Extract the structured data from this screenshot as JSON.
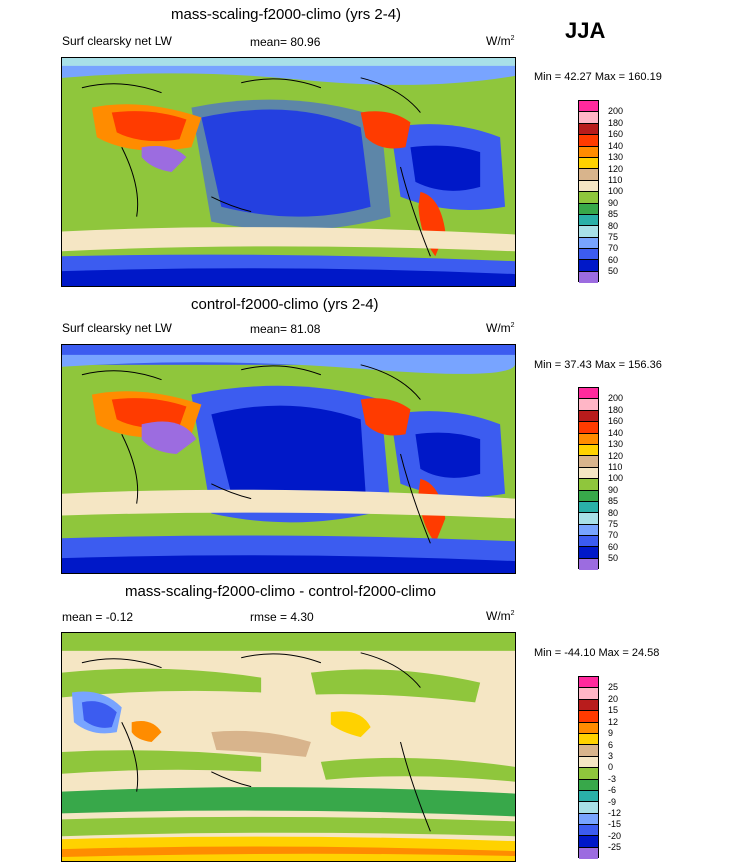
{
  "season": "JJA",
  "panels": [
    {
      "title": "mass-scaling-f2000-climo (yrs 2-4)",
      "left_label": "Surf clearsky net LW",
      "center_label": "mean=  80.96",
      "units": "W/m",
      "units_sup": "2",
      "minmax": "Min =  42.27 Max = 160.19",
      "colorbar_labels": [
        "200",
        "180",
        "160",
        "140",
        "130",
        "120",
        "110",
        "100",
        "90",
        "85",
        "80",
        "75",
        "70",
        "60",
        "50"
      ],
      "colorbar_colors": [
        "#ff2a9d",
        "#ffb6c6",
        "#b81c1c",
        "#ff3b00",
        "#ff8c00",
        "#ffd200",
        "#d8b48c",
        "#f5e6c4",
        "#8fc63c",
        "#38a84a",
        "#2ab0a8",
        "#a8e0e8",
        "#78a4ff",
        "#3c5cf0",
        "#0018c8",
        "#9c6ce0"
      ]
    },
    {
      "title": "control-f2000-climo (yrs 2-4)",
      "left_label": "Surf clearsky net LW",
      "center_label": "mean=  81.08",
      "units": "W/m",
      "units_sup": "2",
      "minmax": "Min =  37.43 Max = 156.36",
      "colorbar_labels": [
        "200",
        "180",
        "160",
        "140",
        "130",
        "120",
        "110",
        "100",
        "90",
        "85",
        "80",
        "75",
        "70",
        "60",
        "50"
      ],
      "colorbar_colors": [
        "#ff2a9d",
        "#ffb6c6",
        "#b81c1c",
        "#ff3b00",
        "#ff8c00",
        "#ffd200",
        "#d8b48c",
        "#f5e6c4",
        "#8fc63c",
        "#38a84a",
        "#2ab0a8",
        "#a8e0e8",
        "#78a4ff",
        "#3c5cf0",
        "#0018c8",
        "#9c6ce0"
      ]
    },
    {
      "title": "mass-scaling-f2000-climo - control-f2000-climo",
      "left_label": "mean =  -0.12",
      "center_label": "rmse =   4.30",
      "units": "W/m",
      "units_sup": "2",
      "minmax": "Min = -44.10 Max =  24.58",
      "colorbar_labels": [
        "25",
        "20",
        "15",
        "12",
        "9",
        "6",
        "3",
        "0",
        "-3",
        "-6",
        "-9",
        "-12",
        "-15",
        "-20",
        "-25"
      ],
      "colorbar_colors": [
        "#ff2a9d",
        "#ffb6c6",
        "#b81c1c",
        "#ff3b00",
        "#ff8c00",
        "#ffd200",
        "#d8b48c",
        "#f5e6c4",
        "#8fc63c",
        "#38a84a",
        "#2ab0a8",
        "#a8e0e8",
        "#78a4ff",
        "#3c5cf0",
        "#0018c8",
        "#9c6ce0"
      ]
    }
  ]
}
